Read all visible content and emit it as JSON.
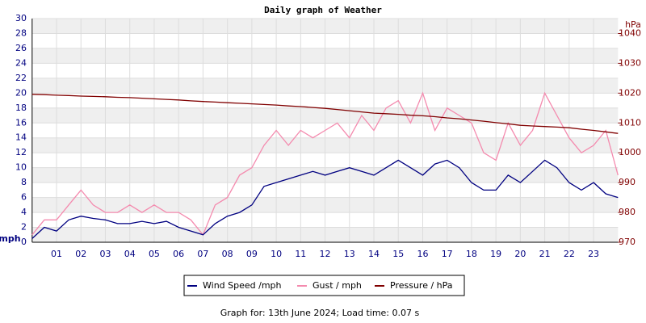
{
  "chart_data": {
    "type": "line",
    "title": "Daily graph of Weather",
    "y_label": "mph",
    "y2_label": "hPa",
    "footer": "Graph for: 13th June 2024; Load time: 0.07 s",
    "x": [
      0,
      0.5,
      1,
      1.5,
      2,
      2.5,
      3,
      3.5,
      4,
      4.5,
      5,
      5.5,
      6,
      6.5,
      7,
      7.5,
      8,
      8.5,
      9,
      9.5,
      10,
      10.5,
      11,
      11.5,
      12,
      12.5,
      13,
      13.5,
      14,
      14.5,
      15,
      15.5,
      16,
      16.5,
      17,
      17.5,
      18,
      18.5,
      19,
      19.5,
      20,
      20.5,
      21,
      21.5,
      22,
      22.5,
      23,
      23.5,
      24
    ],
    "xlim": [
      0,
      24
    ],
    "xticks": [
      {
        "value": 1,
        "label": "01"
      },
      {
        "value": 2,
        "label": "02"
      },
      {
        "value": 3,
        "label": "03"
      },
      {
        "value": 4,
        "label": "04"
      },
      {
        "value": 5,
        "label": "05"
      },
      {
        "value": 6,
        "label": "06"
      },
      {
        "value": 7,
        "label": "07"
      },
      {
        "value": 8,
        "label": "08"
      },
      {
        "value": 9,
        "label": "09"
      },
      10,
      11,
      12,
      13,
      14,
      15,
      16,
      17,
      18,
      19,
      20,
      21,
      22,
      23
    ],
    "ylim": [
      0,
      30
    ],
    "yticks": [
      0,
      2,
      4,
      6,
      8,
      10,
      12,
      14,
      16,
      18,
      20,
      22,
      24,
      26,
      28,
      30
    ],
    "y2lim": [
      970,
      1045
    ],
    "y2ticks": [
      970,
      980,
      990,
      1000,
      1010,
      1020,
      1030,
      1040
    ],
    "grid": true,
    "series": [
      {
        "name": "Gust / mph",
        "color": "#f48aae",
        "values": [
          1,
          3,
          3,
          5,
          7,
          5,
          4,
          4,
          5,
          4,
          5,
          4,
          4,
          3,
          1,
          5,
          6,
          9,
          10,
          13,
          15,
          13,
          15,
          14,
          15,
          16,
          14,
          17,
          15,
          18,
          19,
          16,
          20,
          15,
          18,
          17,
          16,
          12,
          11,
          16,
          13,
          15,
          20,
          17,
          14,
          12,
          13,
          15,
          9
        ]
      },
      {
        "name": "Wind Speed /mph",
        "color": "#000080",
        "values": [
          0.5,
          2,
          1.5,
          3,
          3.5,
          3.2,
          3,
          2.5,
          2.5,
          2.8,
          2.5,
          2.8,
          2,
          1.5,
          1,
          2.5,
          3.5,
          4,
          5,
          7.5,
          8,
          8.5,
          9,
          9.5,
          9,
          9.5,
          10,
          9.5,
          9,
          10,
          11,
          10,
          9,
          10.5,
          11,
          10,
          8,
          7,
          7,
          9,
          8,
          9.5,
          11,
          10,
          8,
          7,
          8,
          6.5,
          6
        ]
      },
      {
        "name": "Pressure / hPa",
        "color": "#800000",
        "axis": "y2",
        "values": [
          1019.6,
          1019.5,
          1019.3,
          1019.2,
          1019.0,
          1018.9,
          1018.8,
          1018.6,
          1018.5,
          1018.3,
          1018.1,
          1017.9,
          1017.7,
          1017.4,
          1017.2,
          1017.0,
          1016.8,
          1016.6,
          1016.4,
          1016.2,
          1016.0,
          1015.7,
          1015.5,
          1015.2,
          1014.9,
          1014.5,
          1014.1,
          1013.7,
          1013.3,
          1013.1,
          1012.9,
          1012.6,
          1012.4,
          1012.1,
          1011.7,
          1011.4,
          1011.0,
          1010.6,
          1010.1,
          1009.7,
          1009.2,
          1009.0,
          1008.8,
          1008.6,
          1008.4,
          1007.9,
          1007.5,
          1007.0,
          1006.5
        ]
      }
    ],
    "legend_order": [
      1,
      0,
      2
    ]
  }
}
